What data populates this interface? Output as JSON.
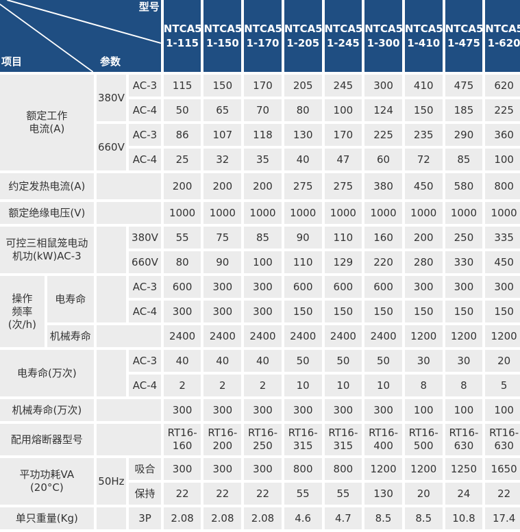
{
  "header": {
    "item": "项目",
    "param": "参数",
    "model": "型号",
    "models": [
      "NTCA5\n1-115",
      "NTCA5\n1-150",
      "NTCA5\n1-170",
      "NTCA5\n1-205",
      "NTCA5\n1-245",
      "NTCA5\n1-300",
      "NTCA5\n1-410",
      "NTCA5\n1-475",
      "NTCA5\n1-620"
    ]
  },
  "colors": {
    "header_bg": "#1f4e82",
    "cell_bg": "#ececec",
    "text": "#333333"
  },
  "rated_current": {
    "label": "额定工作\n电流(A)",
    "groups": [
      {
        "voltage": "380V",
        "rows": [
          {
            "cat": "AC-3",
            "values": [
              "115",
              "150",
              "170",
              "205",
              "245",
              "300",
              "410",
              "475",
              "620"
            ]
          },
          {
            "cat": "AC-4",
            "values": [
              "50",
              "65",
              "70",
              "80",
              "100",
              "124",
              "150",
              "185",
              "225"
            ]
          }
        ]
      },
      {
        "voltage": "660V",
        "rows": [
          {
            "cat": "AC-3",
            "values": [
              "86",
              "107",
              "118",
              "130",
              "170",
              "225",
              "235",
              "290",
              "360"
            ]
          },
          {
            "cat": "AC-4",
            "values": [
              "25",
              "32",
              "35",
              "40",
              "47",
              "60",
              "72",
              "85",
              "100"
            ]
          }
        ]
      }
    ]
  },
  "thermal_current": {
    "label": "约定发热电流(A)",
    "values": [
      "200",
      "200",
      "200",
      "275",
      "275",
      "380",
      "450",
      "580",
      "800"
    ]
  },
  "insulation_voltage": {
    "label": "额定绝缘电压(V)",
    "values": [
      "1000",
      "1000",
      "1000",
      "1000",
      "1000",
      "1000",
      "1000",
      "1000",
      "1000"
    ]
  },
  "motor_power": {
    "label": "可控三相鼠笼电动\n机功(kW)AC-3",
    "rows": [
      {
        "voltage": "380V",
        "values": [
          "55",
          "75",
          "85",
          "90",
          "110",
          "160",
          "200",
          "250",
          "335"
        ]
      },
      {
        "voltage": "660V",
        "values": [
          "80",
          "90",
          "100",
          "110",
          "129",
          "220",
          "280",
          "330",
          "450"
        ]
      }
    ]
  },
  "operating_frequency": {
    "label": "操作\n频率\n(次/h)",
    "electrical": {
      "label": "电寿命",
      "rows": [
        {
          "cat": "AC-3",
          "values": [
            "600",
            "300",
            "300",
            "600",
            "600",
            "600",
            "300",
            "300",
            "300"
          ]
        },
        {
          "cat": "AC-4",
          "values": [
            "300",
            "300",
            "300",
            "150",
            "150",
            "150",
            "150",
            "150",
            "150"
          ]
        }
      ]
    },
    "mechanical": {
      "label": "机械寿命",
      "values": [
        "2400",
        "2400",
        "2400",
        "2400",
        "2400",
        "2400",
        "1200",
        "1200",
        "1200"
      ]
    }
  },
  "electrical_life": {
    "label": "电寿命(万次)",
    "rows": [
      {
        "cat": "AC-3",
        "values": [
          "40",
          "40",
          "40",
          "50",
          "50",
          "50",
          "30",
          "30",
          "20"
        ]
      },
      {
        "cat": "AC-4",
        "values": [
          "2",
          "2",
          "2",
          "10",
          "10",
          "10",
          "8",
          "8",
          "5"
        ]
      }
    ]
  },
  "mechanical_life": {
    "label": "机械寿命(万次)",
    "values": [
      "300",
      "300",
      "300",
      "300",
      "300",
      "300",
      "100",
      "100",
      "100"
    ]
  },
  "fuse": {
    "label": "配用熔断器型号",
    "values": [
      "RT16-160",
      "RT16-200",
      "RT16-250",
      "RT16-315",
      "RT16-315",
      "RT16-400",
      "RT16-500",
      "RT16-630",
      "RT16-630"
    ]
  },
  "power": {
    "label": "平功功耗VA\n(20°C)",
    "freq": "50Hz",
    "rows": [
      {
        "cat": "吸合",
        "values": [
          "300",
          "300",
          "300",
          "800",
          "800",
          "1200",
          "1200",
          "1250",
          "1650"
        ]
      },
      {
        "cat": "保持",
        "values": [
          "22",
          "22",
          "22",
          "55",
          "55",
          "130",
          "20",
          "24",
          "22"
        ]
      }
    ]
  },
  "weight": {
    "label": "单只重量(Kg)",
    "cat": "3P",
    "values": [
      "2.08",
      "2.08",
      "2.08",
      "4.6",
      "4.7",
      "8.5",
      "8.5",
      "10.8",
      "17.4"
    ]
  }
}
